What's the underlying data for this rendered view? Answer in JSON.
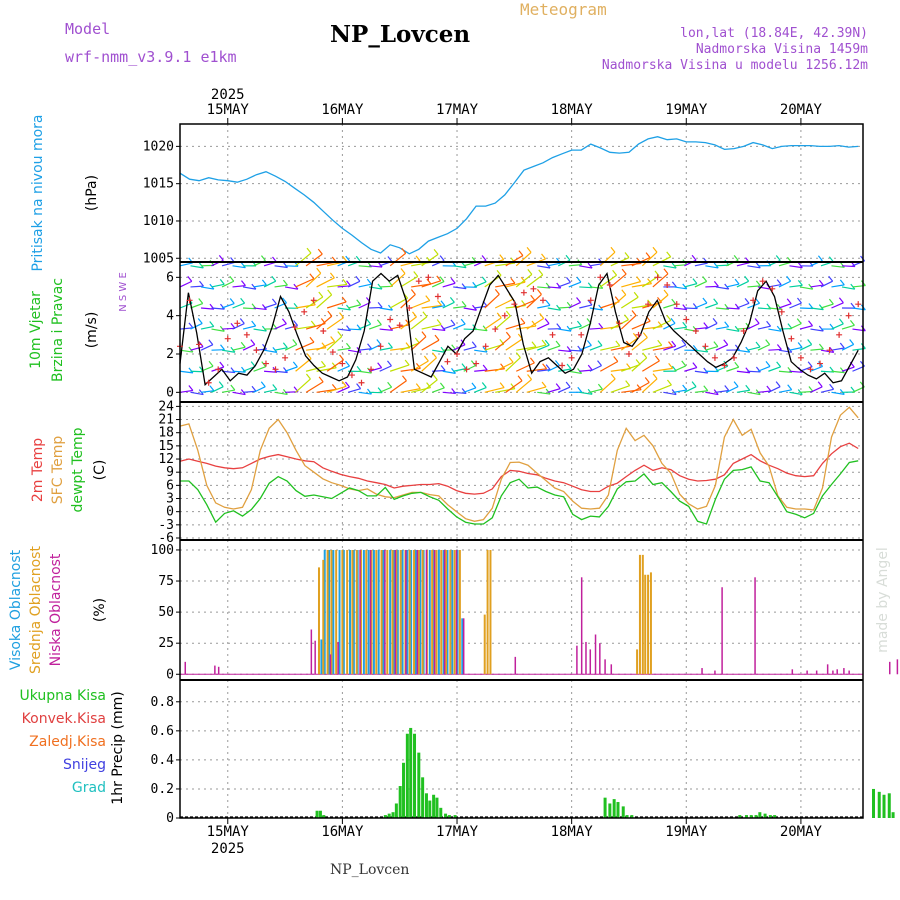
{
  "header": {
    "model_label": "Model",
    "model_name": "wrf-nmm_v3.9.1 e1km",
    "title": "NP_Lovcen",
    "product": "Meteogram",
    "lonlat": "lon,lat (18.84E, 42.39N)",
    "elevation": "Nadmorska Visina 1459m",
    "model_elevation": "Nadmorska Visina u modelu 1256.12m"
  },
  "footer": {
    "title": "NP_Lovcen",
    "credit": "made by Angel"
  },
  "colors": {
    "pressure": "#1ea0e6",
    "wind_obs": "#e03030",
    "temp2m": "#e84040",
    "sfc_temp": "#e0a040",
    "dewpt": "#20c020",
    "cloud_high": "#20a0e0",
    "cloud_mid": "#e0a020",
    "cloud_low": "#c0209c",
    "precip_total": "#20c020",
    "precip_conv": "#e04040",
    "precip_frz": "#f07020",
    "precip_snow": "#4040e0",
    "precip_hail": "#20c0c0"
  },
  "chart_data": [
    {
      "type": "line",
      "ylabel_main": "Pritisak na nivou mora",
      "ylabel_unit": "(hPa)",
      "date_labels": [
        "15MAY",
        "16MAY",
        "17MAY",
        "18MAY",
        "19MAY",
        "20MAY"
      ],
      "year_label": "2025",
      "yticks": [
        1005,
        1010,
        1015,
        1020
      ],
      "ylim": [
        1004.5,
        1023
      ],
      "series": [
        {
          "x": [
            0,
            2,
            4,
            6,
            8,
            10,
            12,
            14,
            16,
            18,
            20,
            22,
            24,
            26,
            28,
            30,
            32,
            34,
            36,
            38,
            40,
            42,
            44,
            46,
            48,
            50,
            52,
            54,
            56,
            58,
            60,
            62,
            64,
            66,
            68,
            70,
            72,
            74,
            76,
            78,
            80,
            82,
            84,
            86,
            88,
            90,
            92,
            94,
            96,
            98,
            100,
            102,
            104,
            106,
            108,
            110,
            112,
            114,
            116,
            118,
            120,
            122,
            124,
            126,
            128,
            130,
            132,
            134,
            136,
            138,
            140,
            142
          ],
          "values": [
            1016.4,
            1015.6,
            1015.4,
            1015.8,
            1015.5,
            1015.4,
            1015.2,
            1015.6,
            1016.2,
            1016.6,
            1016,
            1015.3,
            1014.4,
            1013.5,
            1012.5,
            1011.3,
            1010.1,
            1009,
            1008.1,
            1007.1,
            1006.2,
            1005.7,
            1006.8,
            1006.4,
            1005.6,
            1006.2,
            1007.3,
            1007.8,
            1008.3,
            1009,
            1010.3,
            1012,
            1012,
            1012.4,
            1013.5,
            1015.1,
            1016.8,
            1017.3,
            1017.8,
            1018.5,
            1019,
            1019.5,
            1019.5,
            1020.3,
            1019.8,
            1019.2,
            1019.1,
            1019.2,
            1020.3,
            1021,
            1021.3,
            1020.9,
            1021,
            1020.6,
            1020.6,
            1020.5,
            1020.2,
            1019.6,
            1019.7,
            1020,
            1020.5,
            1020.2,
            1019.7,
            1020,
            1020.1,
            1020.1,
            1020.1,
            1020,
            1020,
            1020.1,
            1019.9,
            1020
          ]
        }
      ]
    },
    {
      "type": "line",
      "ylabel_main": "10m Vjetar",
      "ylabel_sub": "Brzina i Pravac",
      "ylabel_unit": "(m/s)",
      "direction_key": "N S W E",
      "yticks": [
        0,
        2,
        4,
        6
      ],
      "ylim": [
        -0.4,
        6.8
      ],
      "series": [
        {
          "name": "model_speed",
          "values": [
            1.5,
            5.2,
            3.1,
            0.4,
            0.8,
            1.2,
            0.6,
            1.0,
            0.9,
            1.4,
            2.2,
            3.4,
            5.0,
            4.2,
            3.0,
            1.9,
            1.4,
            1.0,
            0.8,
            0.6,
            0.8,
            1.7,
            3.2,
            5.8,
            6.2,
            5.8,
            6.1,
            4.8,
            1.2,
            1.0,
            0.8,
            1.6,
            2.4,
            2.0,
            2.8,
            3.2,
            4.4,
            5.6,
            6.1,
            5.4,
            4.7,
            2.5,
            1.0,
            1.6,
            1.8,
            1.4,
            1.0,
            1.2,
            2.0,
            3.6,
            5.6,
            6.2,
            4.2,
            2.6,
            2.4,
            3.0,
            4.2,
            4.8,
            3.7,
            3.2,
            2.8,
            2.4,
            2.0,
            1.6,
            1.3,
            1.5,
            1.8,
            2.6,
            3.6,
            5.3,
            5.8,
            5.0,
            3.2,
            1.6,
            1.2,
            0.9,
            0.7,
            1.0,
            0.5,
            0.6,
            1.4,
            2.2
          ]
        },
        {
          "name": "obs_speed",
          "values": [
            2.4,
            4.8,
            2.5,
            0.5,
            1.2,
            2.8,
            3.6,
            3.0,
            2.2,
            1.5,
            1.2,
            1.8,
            3.4,
            4.2,
            4.8,
            3.2,
            2.1,
            1.5,
            0.9,
            0.5,
            1.2,
            2.4,
            3.8,
            3.5,
            4.4,
            5.8,
            6.0,
            5.0,
            1.6,
            2.0,
            1.2,
            1.5,
            2.4,
            3.3,
            4.0,
            4.6,
            5.2,
            5.4,
            4.8,
            3.0,
            1.4,
            1.8,
            3.0,
            4.8,
            6.0,
            5.6,
            3.6,
            2.0,
            3.0,
            4.6,
            6.0,
            5.6,
            4.6,
            3.8,
            3.2,
            2.4,
            1.8,
            1.4,
            1.8,
            3.2,
            4.8,
            5.8,
            5.4,
            4.2,
            2.8,
            1.8,
            1.2,
            1.5,
            2.2,
            3.0,
            4.0,
            4.6
          ]
        }
      ]
    },
    {
      "type": "line",
      "ylabels": [
        "2m Temp",
        "SFC Temp",
        "dewpt Temp"
      ],
      "ylabel_unit": "(C)",
      "yticks": [
        -6,
        -3,
        0,
        3,
        6,
        9,
        12,
        15,
        18,
        21,
        24
      ],
      "ylim": [
        -6,
        25
      ],
      "series": [
        {
          "name": "2m Temp",
          "values": [
            11.5,
            12,
            11.5,
            11,
            10.4,
            10,
            9.8,
            10,
            11,
            12,
            12.6,
            13,
            12.5,
            12,
            11.6,
            11.4,
            10,
            9.2,
            8.5,
            8,
            7.6,
            7,
            6.6,
            6.2,
            5.4,
            5.8,
            6,
            6.2,
            6.2,
            6.4,
            5.8,
            4.8,
            4.2,
            4,
            4.2,
            5.2,
            8,
            9.4,
            9.2,
            8.7,
            8.4,
            7.6,
            7,
            6.6,
            5.8,
            5,
            4.6,
            4.6,
            5.8,
            6.5,
            8,
            9.4,
            10.6,
            9.4,
            10,
            9.6,
            8.2,
            7.4,
            7,
            7.1,
            7.4,
            8.4,
            11,
            12,
            13,
            11.6,
            10.6,
            9.8,
            8.8,
            8.2,
            8,
            8.2,
            11,
            13.2,
            14.8,
            15.6,
            14.4
          ]
        },
        {
          "name": "SFC Temp",
          "values": [
            19.5,
            20,
            14,
            6,
            2,
            1,
            0.6,
            1,
            5,
            14,
            19,
            21,
            18,
            14,
            10.5,
            9,
            7.5,
            6.6,
            6,
            5.2,
            4.8,
            5.2,
            4,
            3.4,
            3.2,
            3.8,
            4.4,
            4.4,
            3.9,
            3.6,
            1.6,
            0,
            -1.6,
            -2.2,
            -1.8,
            0.8,
            7.4,
            11.2,
            11.3,
            10.6,
            8.8,
            7.1,
            5.4,
            4.6,
            2.4,
            0.8,
            0.6,
            0.8,
            3.8,
            14,
            19,
            16.2,
            17.4,
            15,
            11,
            8.8,
            4,
            1.8,
            0.6,
            1.2,
            6,
            17,
            21,
            17.4,
            18.8,
            13.4,
            10.4,
            3.6,
            1,
            0.6,
            0.6,
            0.4,
            5.4,
            17,
            22,
            23.8,
            21.4
          ]
        },
        {
          "name": "dewpt Temp",
          "values": [
            7,
            7,
            5,
            1.6,
            -2.4,
            -0.4,
            0.2,
            -1,
            0.5,
            3,
            6.5,
            8,
            7,
            4.8,
            3.5,
            3.8,
            3.4,
            3,
            4.2,
            5.4,
            4.8,
            3.6,
            3.6,
            5.5,
            2.8,
            3.6,
            4.2,
            4.4,
            3.4,
            2.6,
            0.6,
            -1.2,
            -2.4,
            -2.8,
            -2.8,
            -1.4,
            3.6,
            6.6,
            7.4,
            5.4,
            5.6,
            4.6,
            3.8,
            3.4,
            -0.6,
            -1.8,
            -1,
            -1.2,
            1.2,
            5.2,
            6.8,
            7,
            8.6,
            6.2,
            6.6,
            4.6,
            2.4,
            1.2,
            -2.2,
            -2.8,
            2.8,
            7.4,
            9.4,
            9.6,
            10.2,
            7,
            6.6,
            3.4,
            0,
            -0.6,
            -1.4,
            -0.4,
            3.6,
            6.2,
            8.6,
            11.2,
            11.6
          ]
        }
      ]
    },
    {
      "type": "bar",
      "ylabels": [
        "Visoka Oblacnost",
        "Srednja Oblacnost",
        "Niska Oblacnost"
      ],
      "ylabel_unit": "(%)",
      "yticks": [
        0,
        25,
        50,
        75,
        100
      ],
      "ylim": [
        -3,
        108
      ],
      "series": [
        {
          "name": "Visoka Oblacnost",
          "x": [
            29.6,
            30.3,
            31.2,
            32.1,
            33.4,
            34.3,
            35.6,
            36.4,
            37.2,
            38.5,
            39.5,
            40.6,
            41.6,
            42.6,
            44.0,
            44.8,
            45.6,
            46.6,
            47.6,
            48.4,
            49.4,
            50.3,
            51.0,
            52.3,
            53.2,
            54.2,
            55.2,
            56.0,
            57.0,
            58.1,
            59.1
          ],
          "values": [
            28,
            100,
            100,
            100,
            100,
            100,
            100,
            100,
            100,
            100,
            100,
            100,
            100,
            100,
            100,
            100,
            100,
            100,
            100,
            100,
            100,
            100,
            100,
            100,
            100,
            100,
            100,
            100,
            100,
            100,
            45
          ]
        },
        {
          "name": "Srednja Oblacnost",
          "x": [
            29.1,
            30.0,
            30.9,
            31.7,
            32.7,
            34.0,
            35.0,
            36.1,
            37.0,
            37.9,
            39.0,
            40.1,
            41.1,
            42.2,
            43.4,
            44.5,
            45.3,
            46.2,
            47.2,
            48.1,
            49.0,
            50.0,
            50.8,
            51.7,
            52.8,
            53.7,
            54.7,
            55.7,
            56.6,
            57.5,
            58.6,
            63.8,
            64.4,
            65.0,
            95.7,
            96.3,
            96.9,
            97.4,
            98.0,
            98.6
          ],
          "values": [
            86,
            92,
            100,
            100,
            100,
            100,
            100,
            100,
            100,
            100,
            100,
            100,
            100,
            100,
            100,
            100,
            100,
            100,
            100,
            100,
            100,
            100,
            100,
            100,
            100,
            100,
            100,
            100,
            100,
            100,
            100,
            48,
            100,
            100,
            20,
            96,
            96,
            80,
            80,
            82
          ]
        },
        {
          "name": "Niska Oblacnost",
          "x": [
            1.1,
            7.3,
            8.1,
            27.5,
            28.3,
            31.5,
            33.1,
            37.7,
            39.9,
            42.9,
            45.1,
            47.3,
            49.7,
            51.6,
            53.3,
            55.4,
            57.9,
            59.4,
            70.2,
            83.1,
            84.1,
            85.0,
            85.9,
            87.0,
            87.9,
            89.0,
            90.3,
            109.3,
            112.0,
            113.5,
            120.4,
            128.2,
            131.3,
            133.3,
            135.6,
            136.7,
            137.6,
            139.0,
            140.1,
            148.6,
            150.2,
            151.3,
            153.7,
            162.5,
            167.3,
            168.5,
            171.5,
            172.8,
            174.4,
            175.9,
            176.9,
            178.0,
            188.2,
            188.9
          ],
          "values": [
            10,
            7,
            6,
            36,
            27,
            16,
            26,
            100,
            100,
            100,
            100,
            100,
            100,
            100,
            100,
            100,
            100,
            45,
            14,
            23,
            78,
            26,
            20,
            32,
            25,
            12,
            8,
            5,
            3,
            70,
            78,
            4,
            3,
            3,
            8,
            3,
            4,
            5,
            3,
            10,
            12,
            3,
            8,
            12,
            40,
            24,
            22,
            30,
            28,
            25,
            24,
            22,
            7,
            11
          ]
        }
      ]
    },
    {
      "type": "bar",
      "ylabels": [
        "Ukupna Kisa",
        "Konvek.Kisa",
        "Zaledj.Kisa",
        "Snijeg",
        "Grad"
      ],
      "ylabel_unit": "1hr Precip (mm)",
      "yticks": [
        0,
        0.2,
        0.4,
        0.6,
        0.8
      ],
      "ylim": [
        0,
        0.95
      ],
      "series": [
        {
          "name": "Ukupna Kisa",
          "x": [
            28.7,
            29.4,
            30.1,
            43.0,
            43.8,
            44.6,
            45.3,
            46.1,
            46.8,
            47.6,
            48.3,
            49.1,
            50.0,
            50.8,
            51.6,
            52.3,
            53.1,
            53.8,
            54.6,
            55.6,
            56.4,
            57.6,
            89.0,
            90.0,
            90.9,
            91.7,
            92.8,
            93.6,
            94.6,
            117.2,
            118.6,
            119.6,
            120.6,
            121.4,
            122.5,
            123.6,
            124.5,
            145.2,
            146.4,
            147.4,
            148.5,
            149.3,
            152.9,
            153.7,
            154.7,
            155.6,
            156.5,
            157.2,
            158.1,
            158.9,
            159.6
          ],
          "values": [
            0.05,
            0.05,
            0.02,
            0.02,
            0.03,
            0.04,
            0.1,
            0.22,
            0.38,
            0.58,
            0.62,
            0.58,
            0.45,
            0.28,
            0.17,
            0.12,
            0.16,
            0.14,
            0.07,
            0.03,
            0.02,
            0.02,
            0.14,
            0.1,
            0.13,
            0.11,
            0.08,
            0.02,
            0.02,
            0.02,
            0.02,
            0.02,
            0.02,
            0.04,
            0.03,
            0.02,
            0.02,
            0.2,
            0.18,
            0.16,
            0.17,
            0.04,
            0.18,
            0.15,
            0.08,
            0.04,
            0.02,
            0.23,
            0.12,
            0.1,
            0.02
          ]
        },
        {
          "name": "Konvek.Kisa",
          "x": [
            153.3
          ],
          "values": [
            0.08
          ]
        },
        {
          "name": "Zaledj.Kisa",
          "x": [],
          "values": []
        },
        {
          "name": "Snijeg",
          "x": [],
          "values": []
        },
        {
          "name": "Grad",
          "x": [],
          "values": []
        }
      ]
    }
  ]
}
